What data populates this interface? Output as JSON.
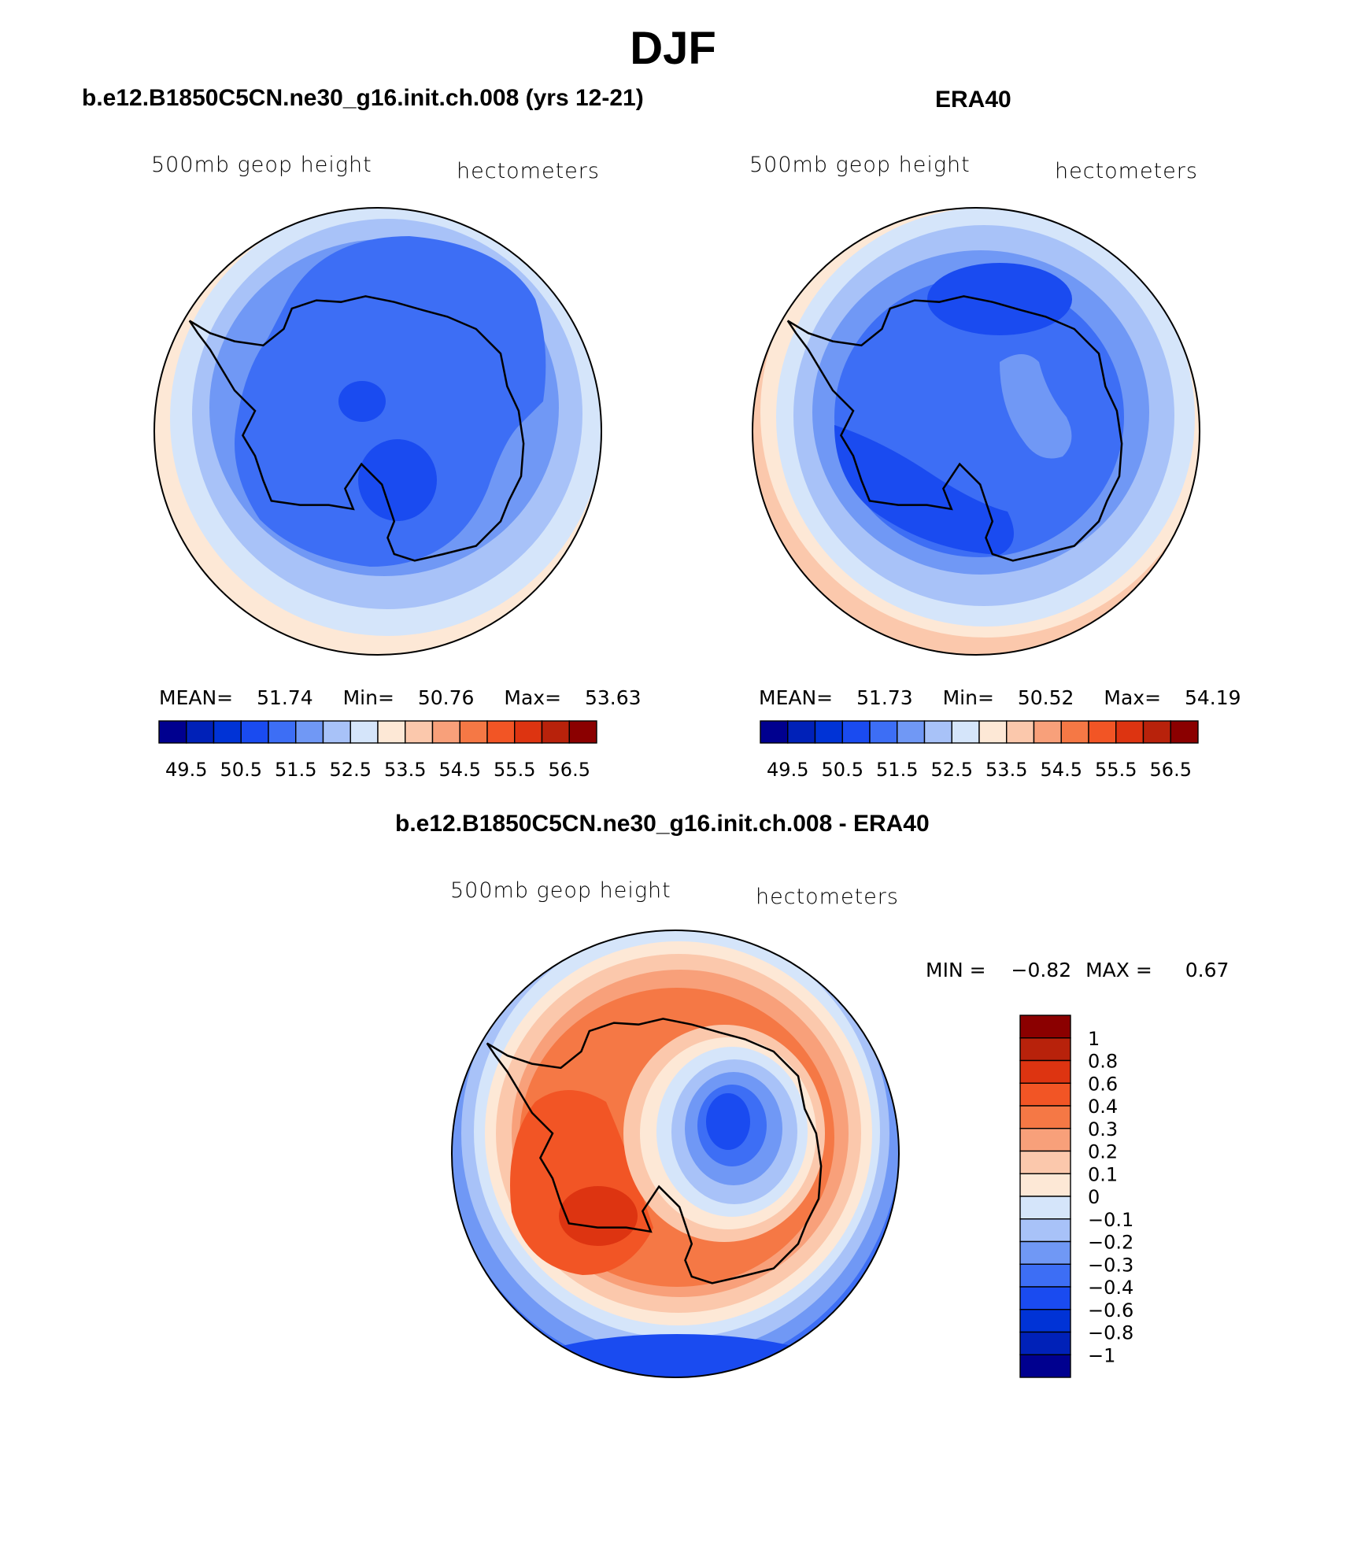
{
  "figure": {
    "title": "DJF"
  },
  "panels": {
    "model": {
      "title": "b.e12.B1850C5CN.ne30_g16.init.ch.008 (yrs 12-21)",
      "left_label": "500mb geop height",
      "right_label": "hectometers",
      "mean_label": "MEAN=",
      "mean": "51.74",
      "min_label": "Min=",
      "min": "50.76",
      "max_label": "Max=",
      "max": "53.63"
    },
    "obs": {
      "title": "ERA40",
      "left_label": "500mb geop height",
      "right_label": "hectometers",
      "mean_label": "MEAN=",
      "mean": "51.73",
      "min_label": "Min=",
      "min": "50.52",
      "max_label": "Max=",
      "max": "54.19"
    },
    "diff": {
      "title": "b.e12.B1850C5CN.ne30_g16.init.ch.008 - ERA40",
      "left_label": "500mb geop height",
      "right_label": "hectometers",
      "min_label": "MIN =",
      "min": "−0.82",
      "max_label": "MAX =",
      "max": "0.67"
    }
  },
  "colorbars": {
    "abs": {
      "colors": [
        "#00008f",
        "#0021b8",
        "#0033d6",
        "#1a4bf0",
        "#3d6ef5",
        "#7098f5",
        "#a8c2f8",
        "#d5e5fa",
        "#fde8d6",
        "#fbc8ac",
        "#f8a07a",
        "#f57845",
        "#f25525",
        "#dd3411",
        "#b8220b",
        "#8b0000"
      ],
      "labels": [
        "49.5",
        "50.5",
        "51.5",
        "52.5",
        "53.5",
        "54.5",
        "55.5",
        "56.5"
      ]
    },
    "diff": {
      "colors": [
        "#8b0000",
        "#b8220b",
        "#dd3411",
        "#f25525",
        "#f57845",
        "#f8a07a",
        "#fbc8ac",
        "#fde8d6",
        "#d5e5fa",
        "#a8c2f8",
        "#7098f5",
        "#3d6ef5",
        "#1a4bf0",
        "#0033d6",
        "#0021b8",
        "#00008f"
      ],
      "labels": [
        "1",
        "0.8",
        "0.6",
        "0.4",
        "0.3",
        "0.2",
        "0.1",
        "0",
        "−0.1",
        "−0.2",
        "−0.3",
        "−0.4",
        "−0.6",
        "−0.8",
        "−1"
      ]
    }
  }
}
